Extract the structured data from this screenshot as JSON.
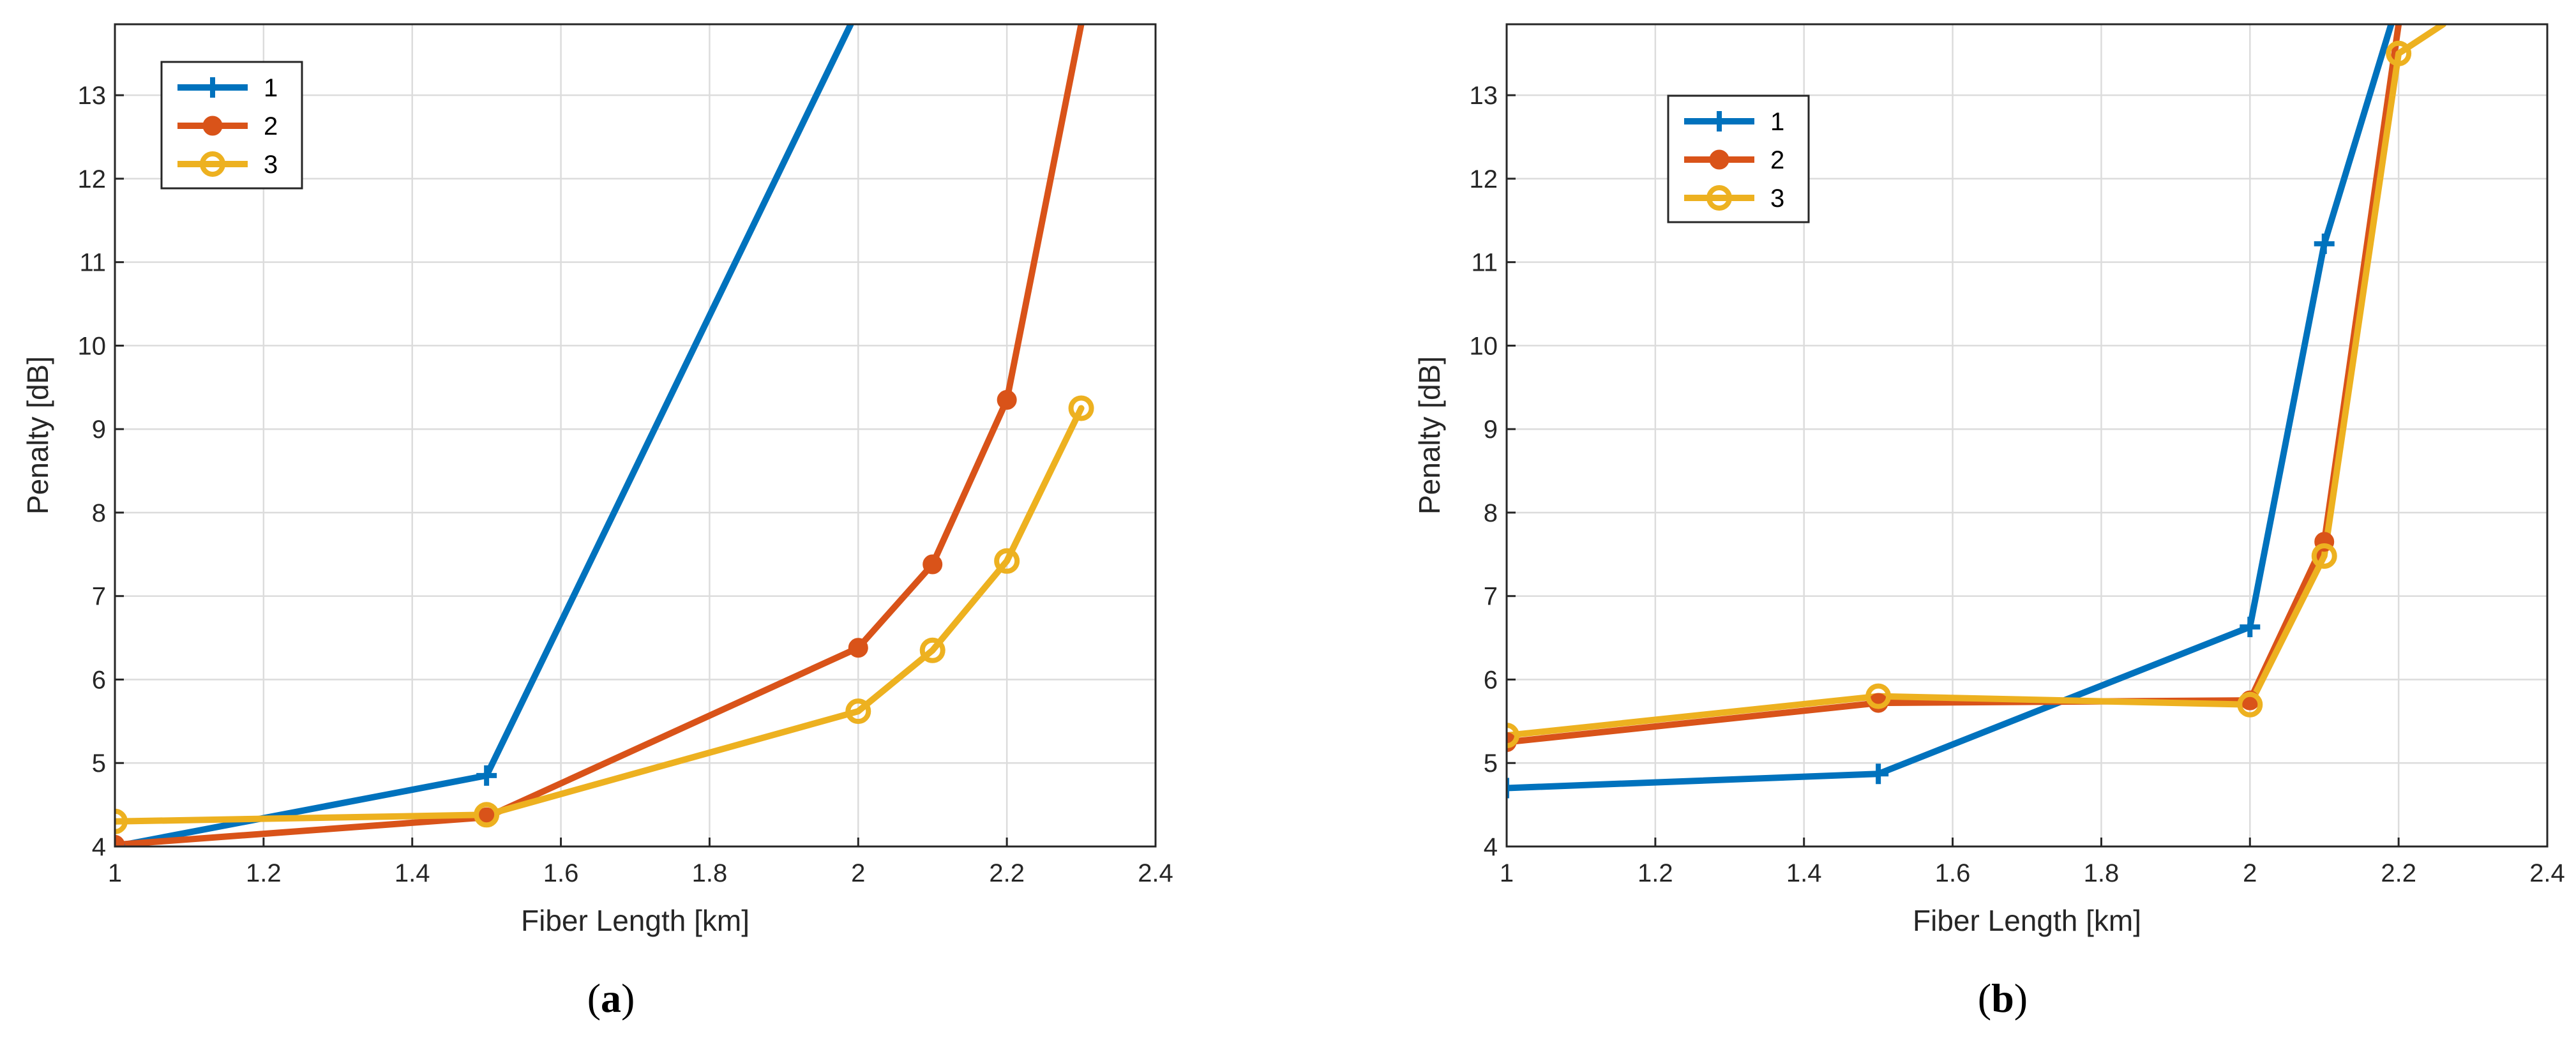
{
  "figure": {
    "panels": [
      "a",
      "b"
    ]
  },
  "chart_data": [
    {
      "type": "line",
      "panel_label": "a",
      "title": "",
      "xlabel": "Fiber Length [km]",
      "ylabel": "Penalty [dB]",
      "xlim": [
        1,
        2.4
      ],
      "ylim": [
        4,
        13.85
      ],
      "xticks": [
        1,
        1.2,
        1.4,
        1.6,
        1.8,
        2,
        2.2,
        2.4
      ],
      "xtick_labels": [
        "1",
        "1.2",
        "1.4",
        "1.6",
        "1.8",
        "2",
        "2.2",
        "2.4"
      ],
      "yticks": [
        4,
        5,
        6,
        7,
        8,
        9,
        10,
        11,
        12,
        13
      ],
      "ytick_labels": [
        "4",
        "5",
        "6",
        "7",
        "8",
        "9",
        "10",
        "11",
        "12",
        "13"
      ],
      "grid": true,
      "legend_position": "top-left",
      "series": [
        {
          "name": "1",
          "color": "#0072BD",
          "marker": "plus",
          "x": [
            1,
            1.5,
            1.99
          ],
          "y": [
            4.0,
            4.85,
            13.85
          ],
          "markers": [
            true,
            true,
            false
          ]
        },
        {
          "name": "2",
          "color": "#D95319",
          "marker": "filled-circle",
          "x": [
            1,
            1.5,
            2,
            2.1,
            2.2,
            2.3
          ],
          "y": [
            4.02,
            4.35,
            6.38,
            7.38,
            9.35,
            13.85
          ],
          "markers": [
            true,
            true,
            true,
            true,
            true,
            false
          ]
        },
        {
          "name": "3",
          "color": "#EDB120",
          "marker": "open-circle",
          "x": [
            1,
            1.5,
            2,
            2.1,
            2.2,
            2.3
          ],
          "y": [
            4.3,
            4.38,
            5.62,
            6.35,
            7.42,
            9.25
          ],
          "markers": [
            true,
            true,
            true,
            true,
            true,
            true
          ]
        }
      ]
    },
    {
      "type": "line",
      "panel_label": "b",
      "title": "",
      "xlabel": "Fiber Length [km]",
      "ylabel": "Penalty [dB]",
      "xlim": [
        1,
        2.4
      ],
      "ylim": [
        4,
        13.85
      ],
      "xticks": [
        1,
        1.2,
        1.4,
        1.6,
        1.8,
        2,
        2.2,
        2.4
      ],
      "xtick_labels": [
        "1",
        "1.2",
        "1.4",
        "1.6",
        "1.8",
        "2",
        "2.2",
        "2.4"
      ],
      "yticks": [
        4,
        5,
        6,
        7,
        8,
        9,
        10,
        11,
        12,
        13
      ],
      "ytick_labels": [
        "4",
        "5",
        "6",
        "7",
        "8",
        "9",
        "10",
        "11",
        "12",
        "13"
      ],
      "grid": true,
      "legend_position": "top-left",
      "series": [
        {
          "name": "1",
          "color": "#0072BD",
          "marker": "plus",
          "x": [
            1,
            1.5,
            2,
            2.1,
            2.19
          ],
          "y": [
            4.7,
            4.87,
            6.63,
            11.22,
            13.85
          ],
          "markers": [
            true,
            true,
            true,
            true,
            false
          ]
        },
        {
          "name": "2",
          "color": "#D95319",
          "marker": "filled-circle",
          "x": [
            1,
            1.5,
            2,
            2.1,
            2.2
          ],
          "y": [
            5.25,
            5.72,
            5.75,
            7.65,
            13.85
          ],
          "markers": [
            true,
            true,
            true,
            true,
            false
          ]
        },
        {
          "name": "3",
          "color": "#EDB120",
          "marker": "open-circle",
          "x": [
            1,
            1.5,
            2,
            2.1,
            2.2,
            2.26
          ],
          "y": [
            5.33,
            5.8,
            5.7,
            7.48,
            13.5,
            13.85
          ],
          "markers": [
            true,
            true,
            true,
            true,
            true,
            false
          ]
        }
      ]
    }
  ]
}
